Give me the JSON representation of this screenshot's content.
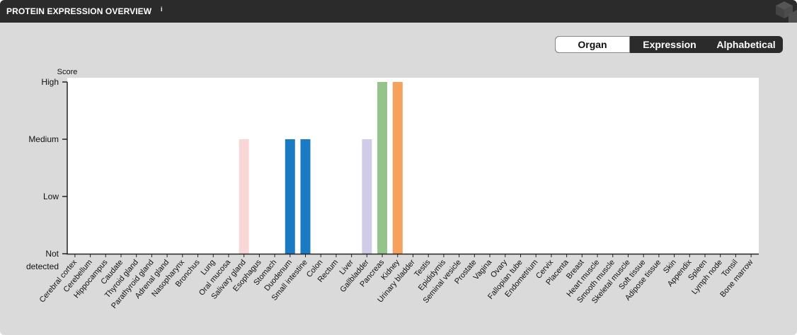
{
  "header": {
    "title": "PROTEIN EXPRESSION OVERVIEW",
    "info_marker": "i"
  },
  "view_toggle": {
    "options": [
      "Organ",
      "Expression",
      "Alphabetical"
    ],
    "selected": "Organ"
  },
  "chart_data": {
    "type": "bar",
    "ylabel": "Score",
    "y_ticks": [
      "Not detected",
      "Low",
      "Medium",
      "High"
    ],
    "ylim": [
      0,
      3
    ],
    "categories": [
      "Cerebral cortex",
      "Cerebellum",
      "Hippocampus",
      "Caudate",
      "Thyroid gland",
      "Parathyroid gland",
      "Adrenal gland",
      "Nasopharynx",
      "Bronchus",
      "Lung",
      "Oral mucosa",
      "Salivary gland",
      "Esophagus",
      "Stomach",
      "Duodenum",
      "Small intestine",
      "Colon",
      "Rectum",
      "Liver",
      "Gallbladder",
      "Pancreas",
      "Kidney",
      "Urinary bladder",
      "Testis",
      "Epididymis",
      "Seminal vesicle",
      "Prostate",
      "Vagina",
      "Ovary",
      "Fallopian tube",
      "Endometrium",
      "Cervix",
      "Placenta",
      "Breast",
      "Heart muscle",
      "Smooth muscle",
      "Skeletal muscle",
      "Soft tissue",
      "Adipose tissue",
      "Skin",
      "Appendix",
      "Spleen",
      "Lymph node",
      "Tonsil",
      "Bone marrow"
    ],
    "values": [
      0,
      0,
      0,
      0,
      0,
      0,
      0,
      0,
      0,
      0,
      0,
      2,
      0,
      0,
      2,
      2,
      0,
      0,
      0,
      2,
      3,
      3,
      0,
      0,
      0,
      0,
      0,
      0,
      0,
      0,
      0,
      0,
      0,
      0,
      0,
      0,
      0,
      0,
      0,
      0,
      0,
      0,
      0,
      0,
      0
    ],
    "colors": [
      "#000000",
      "#000000",
      "#000000",
      "#000000",
      "#000000",
      "#000000",
      "#000000",
      "#000000",
      "#000000",
      "#000000",
      "#000000",
      "#f9d7d7",
      "#000000",
      "#000000",
      "#1b7ac4",
      "#1b7ac4",
      "#000000",
      "#000000",
      "#000000",
      "#d0cbe6",
      "#95c38c",
      "#f7a15f",
      "#000000",
      "#000000",
      "#000000",
      "#000000",
      "#000000",
      "#000000",
      "#000000",
      "#000000",
      "#000000",
      "#000000",
      "#000000",
      "#000000",
      "#000000",
      "#000000",
      "#000000",
      "#000000",
      "#000000",
      "#000000",
      "#000000",
      "#000000",
      "#000000",
      "#000000",
      "#000000"
    ],
    "grid": false,
    "background": "#ffffff"
  }
}
